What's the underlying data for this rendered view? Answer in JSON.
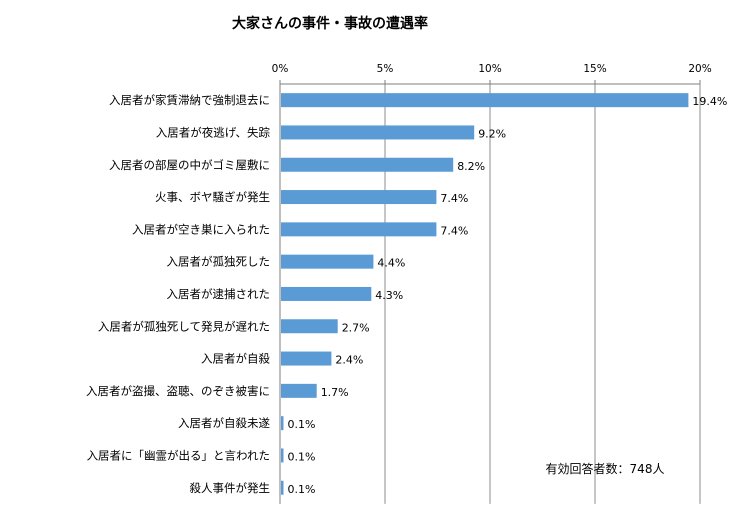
{
  "chart_data": {
    "type": "bar",
    "orientation": "horizontal",
    "title": "大家さんの事件・事故の遭遇率",
    "categories": [
      "入居者が家賃滞納で強制退去に",
      "入居者が夜逃げ、失踪",
      "入居者の部屋の中がゴミ屋敷に",
      "火事、ボヤ騒ぎが発生",
      "入居者が空き巣に入られた",
      "入居者が孤独死した",
      "入居者が逮捕された",
      "入居者が孤独死して発見が遅れた",
      "入居者が自殺",
      "入居者が盗撮、盗聴、のぞき被害に",
      "入居者が自殺未遂",
      "入居者に「幽霊が出る」と言われた",
      "殺人事件が発生"
    ],
    "values": [
      19.4,
      9.2,
      8.2,
      7.4,
      7.4,
      4.4,
      4.3,
      2.7,
      2.4,
      1.7,
      0.1,
      0.1,
      0.1
    ],
    "value_labels": [
      "19.4%",
      "9.2%",
      "8.2%",
      "7.4%",
      "7.4%",
      "4.4%",
      "4.3%",
      "2.7%",
      "2.4%",
      "1.7%",
      "0.1%",
      "0.1%",
      "0.1%"
    ],
    "xticks": [
      0,
      5,
      10,
      15,
      20
    ],
    "xtick_labels": [
      "0%",
      "5%",
      "10%",
      "15%",
      "20%"
    ],
    "xlim": [
      0,
      20
    ],
    "xaxis_position": "top",
    "grid": "vertical",
    "bar_color": "#5b9bd5",
    "annotation": "有効回答者数：748人"
  }
}
